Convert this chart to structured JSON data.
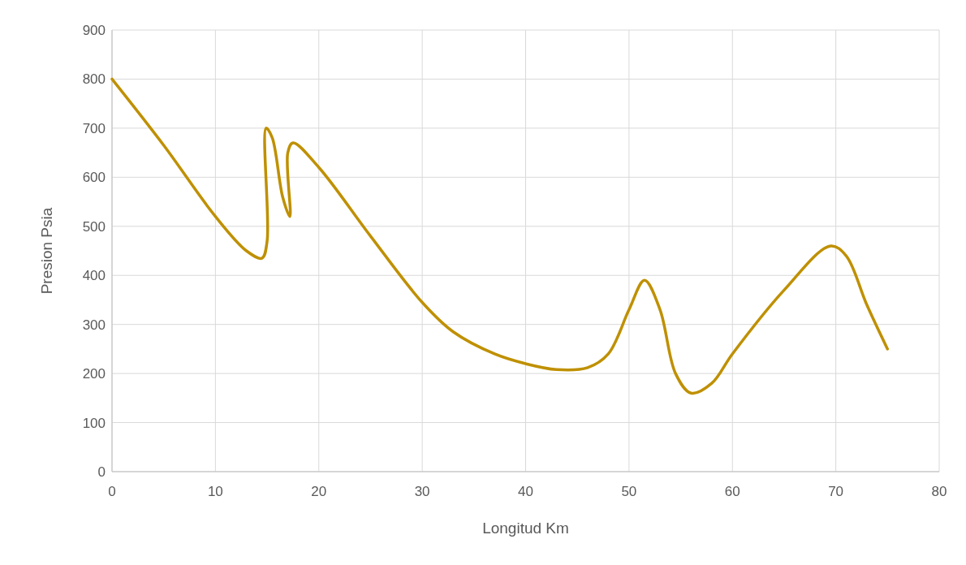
{
  "chart_data": {
    "type": "line",
    "xlabel": "Longitud Km",
    "ylabel": "Presion Psia",
    "xlim": [
      0,
      80
    ],
    "xticks": [
      0,
      10,
      20,
      30,
      40,
      50,
      60,
      70,
      80
    ],
    "ylim": [
      0,
      900
    ],
    "yticks": [
      0,
      100,
      200,
      300,
      400,
      500,
      600,
      700,
      800,
      900
    ],
    "grid": true,
    "marker": "none",
    "line_style": "solid",
    "series": [
      {
        "color": "#bf9000",
        "x": [
          0,
          5,
          10,
          13,
          14.5,
          15,
          14.9,
          15.5,
          16.5,
          17.2,
          17,
          17.5,
          20,
          25,
          30,
          33,
          37,
          40,
          43,
          46,
          48,
          50,
          51.5,
          53,
          54.5,
          56,
          58,
          60,
          65,
          69.5,
          71,
          73,
          75
        ],
        "values": [
          800,
          665,
          520,
          450,
          435,
          470,
          700,
          680,
          560,
          520,
          650,
          670,
          620,
          480,
          345,
          285,
          240,
          220,
          208,
          212,
          240,
          330,
          390,
          330,
          200,
          160,
          180,
          240,
          370,
          460,
          440,
          340,
          250
        ]
      }
    ]
  }
}
